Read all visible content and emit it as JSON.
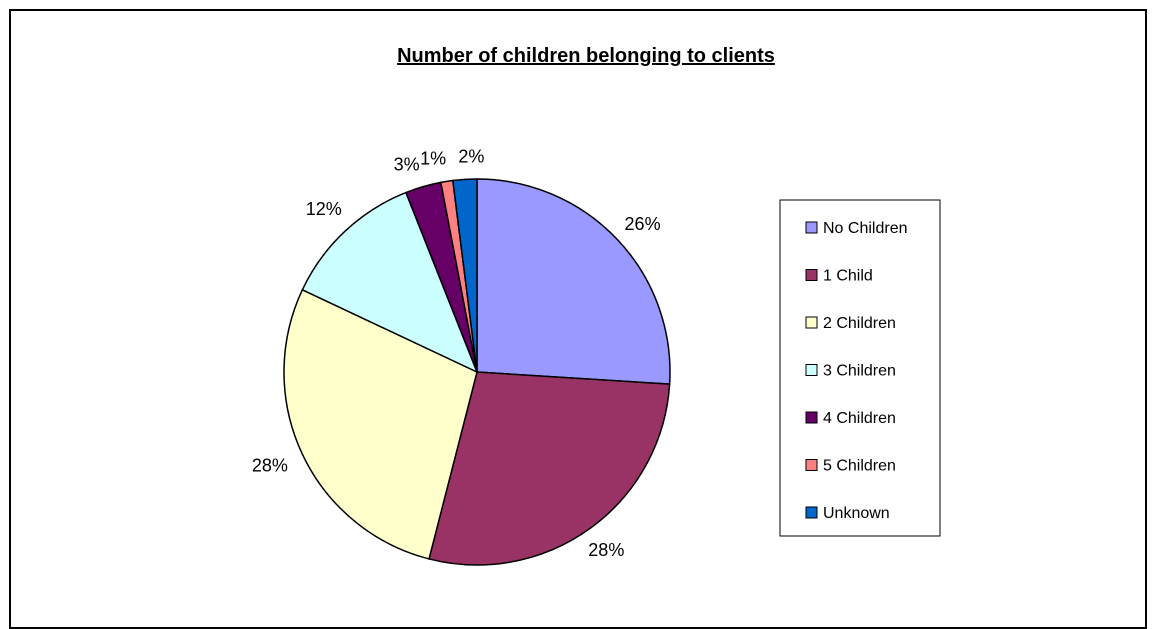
{
  "chart_data": {
    "type": "pie",
    "title": "Number of children belonging to clients",
    "categories": [
      "No Children",
      "1 Child",
      "2 Children",
      "3 Children",
      "4 Children",
      "5 Children",
      "Unknown"
    ],
    "values": [
      26,
      28,
      28,
      12,
      3,
      1,
      2
    ],
    "labels": [
      "26%",
      "28%",
      "28%",
      "12%",
      "3%",
      "1%",
      "2%"
    ],
    "colors": [
      "#9999ff",
      "#993366",
      "#ffffcc",
      "#ccffff",
      "#660066",
      "#ff8080",
      "#0066cc"
    ],
    "legend_position": "right",
    "start_angle": "12 o'clock",
    "direction": "clockwise"
  }
}
